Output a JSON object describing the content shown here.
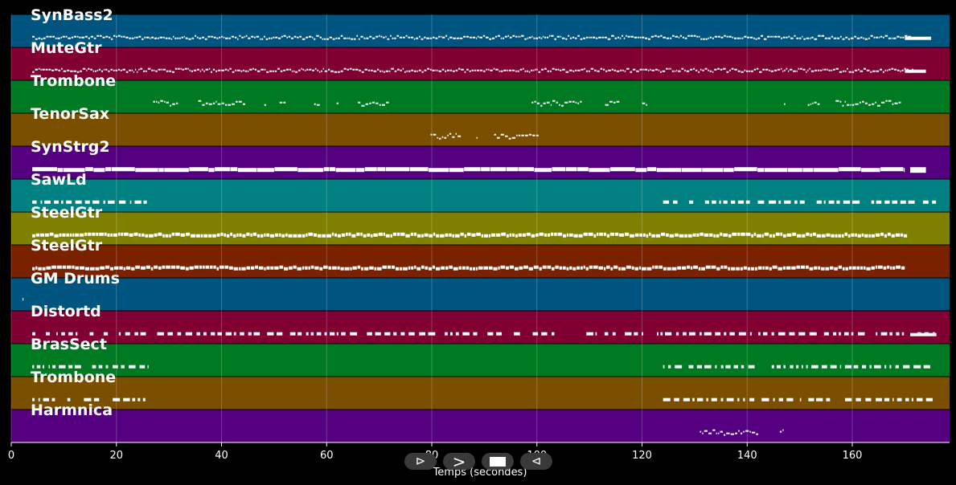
{
  "window": {
    "background": "#000000"
  },
  "tracks": [
    {
      "name": "SynBass2",
      "color": "#005580",
      "pattern": "melody-dense",
      "ranges": [
        [
          4,
          172
        ]
      ],
      "tail": [
        170,
        175
      ]
    },
    {
      "name": "MuteGtr",
      "color": "#800033",
      "pattern": "melody-dense",
      "ranges": [
        [
          4,
          172
        ]
      ],
      "tail": [
        170,
        174
      ]
    },
    {
      "name": "Trombone",
      "color": "#007a22",
      "pattern": "melody-sparse",
      "ranges": [
        [
          27,
          73
        ],
        [
          99,
          121
        ],
        [
          147,
          169
        ]
      ]
    },
    {
      "name": "TenorSax",
      "color": "#7a4f00",
      "pattern": "melody-sparse",
      "ranges": [
        [
          76,
          100
        ]
      ]
    },
    {
      "name": "SynStrg2",
      "color": "#550080",
      "pattern": "solid-bar",
      "ranges": [
        [
          4,
          170
        ]
      ],
      "tail": [
        171,
        174
      ]
    },
    {
      "name": "SawLd",
      "color": "#008080",
      "pattern": "rhythm",
      "ranges": [
        [
          4,
          26
        ],
        [
          124,
          176
        ]
      ]
    },
    {
      "name": "SteelGtr",
      "color": "#808000",
      "pattern": "thick-dense",
      "ranges": [
        [
          4,
          170
        ]
      ]
    },
    {
      "name": "SteelGtr",
      "color": "#7a2200",
      "pattern": "thick-dense",
      "ranges": [
        [
          4,
          170
        ]
      ]
    },
    {
      "name": "GM Drums",
      "color": "#005580",
      "pattern": "none",
      "ranges": []
    },
    {
      "name": "Distortd",
      "color": "#800033",
      "pattern": "rhythm",
      "ranges": [
        [
          4,
          176
        ]
      ],
      "tail": [
        171,
        176
      ]
    },
    {
      "name": "BrasSect",
      "color": "#007a22",
      "pattern": "rhythm",
      "ranges": [
        [
          4,
          26
        ],
        [
          124,
          176
        ]
      ]
    },
    {
      "name": "Trombone",
      "color": "#7a4f00",
      "pattern": "rhythm",
      "ranges": [
        [
          4,
          26
        ],
        [
          124,
          176
        ]
      ]
    },
    {
      "name": "Harmnica",
      "color": "#550080",
      "pattern": "melody-sparse",
      "ranges": [
        [
          131,
          149
        ]
      ]
    }
  ],
  "x_axis": {
    "label": "Temps (secondes)",
    "ticks": [
      "0",
      "20",
      "40",
      "60",
      "80",
      "100",
      "120",
      "140",
      "160"
    ],
    "tick_values": [
      0,
      20,
      40,
      60,
      80,
      100,
      120,
      140,
      160
    ],
    "range": [
      0,
      178.5
    ]
  },
  "transport": {
    "play_label": "⊳",
    "forward_label": ">",
    "rewind_label": "⊲",
    "icons": [
      "play-icon",
      "forward-icon",
      "stop-icon",
      "rewind-icon"
    ]
  }
}
